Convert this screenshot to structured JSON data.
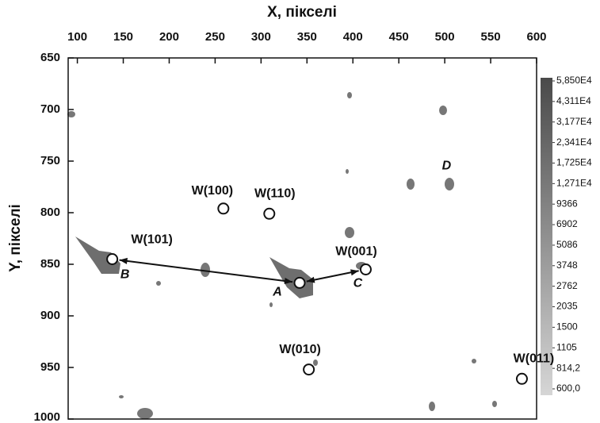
{
  "chart_data": {
    "type": "scatter",
    "x_label": "X, пікселі",
    "y_label": "Y, пікселі",
    "xlim": [
      90,
      600
    ],
    "xticks": [
      100,
      150,
      200,
      250,
      300,
      350,
      400,
      450,
      500,
      550,
      600
    ],
    "ylim": [
      650,
      1000
    ],
    "yticks": [
      650,
      700,
      750,
      800,
      850,
      900,
      950,
      1000
    ],
    "y_inverted": true,
    "points": [
      {
        "label": "W(100)",
        "x": 259,
        "y": 796,
        "filled": false
      },
      {
        "label": "W(110)",
        "x": 309,
        "y": 801,
        "filled": false
      },
      {
        "label": "W(101)",
        "letter": "B",
        "x": 138,
        "y": 845,
        "filled": true
      },
      {
        "label": "W(001)",
        "letter": "C",
        "x": 414,
        "y": 855,
        "filled": false
      },
      {
        "letter": "A",
        "x": 342,
        "y": 868,
        "filled": true
      },
      {
        "label": "W(010)",
        "x": 352,
        "y": 952,
        "filled": false
      },
      {
        "label": "W(011)",
        "x": 584,
        "y": 961,
        "filled": false
      }
    ],
    "annotations": [
      {
        "text": "D",
        "x": 502,
        "y": 755
      }
    ],
    "colorbar": {
      "scale": "log",
      "lim": [
        600,
        58500
      ],
      "ticks": [
        {
          "value": 58500,
          "label": "5,850E4"
        },
        {
          "value": 43110,
          "label": "4,311E4"
        },
        {
          "value": 31770,
          "label": "3,177E4"
        },
        {
          "value": 23410,
          "label": "2,341E4"
        },
        {
          "value": 17250,
          "label": "1,725E4"
        },
        {
          "value": 12710,
          "label": "1,271E4"
        },
        9366,
        6902,
        5086,
        3748,
        2762,
        2035,
        1500,
        1105,
        {
          "value": 814.2,
          "label": "814,2"
        },
        {
          "value": 600,
          "label": "600,0"
        }
      ]
    }
  }
}
